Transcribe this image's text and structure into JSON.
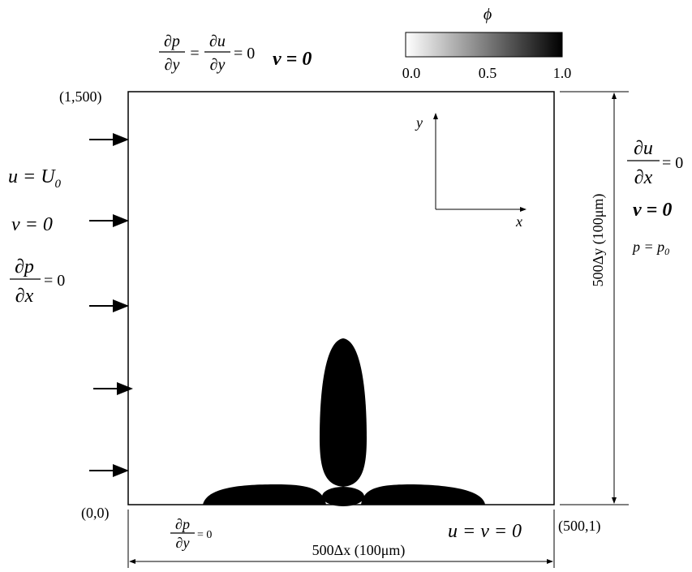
{
  "colorbar": {
    "symbol": "ϕ",
    "ticks": [
      "0.0",
      "0.5",
      "1.0"
    ]
  },
  "corners": {
    "top_left": "(1,500)",
    "bottom_left": "(0,0)",
    "bottom_right": "(500,1)"
  },
  "top_boundary": {
    "frac1_num": "∂p",
    "frac1_den": "∂y",
    "equals": "=",
    "frac2_num": "∂u",
    "frac2_den": "∂y",
    "rhs": "= 0",
    "v_condition": "v = 0"
  },
  "left_boundary": {
    "u_lhs": "u = U",
    "u_sub": "0",
    "v_condition": "v = 0",
    "frac_num": "∂p",
    "frac_den": "∂x",
    "rhs": "= 0"
  },
  "right_boundary": {
    "frac_num": "∂u",
    "frac_den": "∂x",
    "rhs": "= 0",
    "v_condition": "v = 0",
    "p_lhs": "p = p",
    "p_sub": "0"
  },
  "bottom_boundary": {
    "frac_num": "∂p",
    "frac_den": "∂y",
    "rhs": "= 0",
    "uv_condition": "u = v = 0"
  },
  "dimensions": {
    "width": "500Δx (100μm)",
    "height": "500Δy (100μm)"
  },
  "axes": {
    "x": "x",
    "y": "y"
  }
}
